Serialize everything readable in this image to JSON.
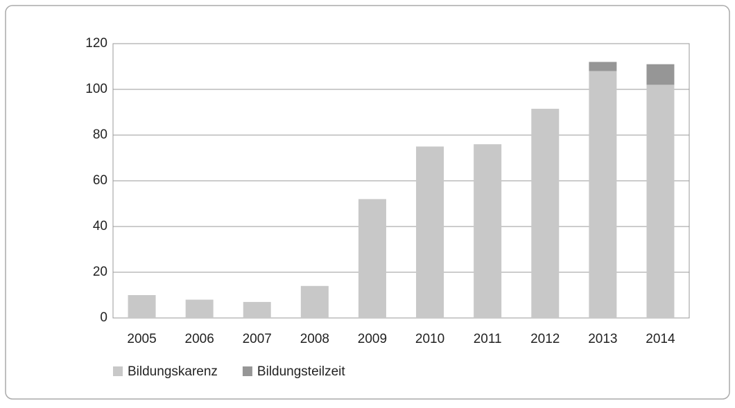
{
  "chart_data": {
    "type": "stacked_bar",
    "categories": [
      "2005",
      "2006",
      "2007",
      "2008",
      "2009",
      "2010",
      "2011",
      "2012",
      "2013",
      "2014"
    ],
    "series": [
      {
        "name": "Bildungskarenz",
        "color": "#c8c8c8",
        "values": [
          10,
          8,
          7,
          14,
          52,
          75,
          76,
          91.5,
          108,
          102
        ]
      },
      {
        "name": "Bildungsteilzeit",
        "color": "#969696",
        "values": [
          0,
          0,
          0,
          0,
          0,
          0,
          0,
          0,
          4,
          9
        ]
      }
    ],
    "ylim": [
      0,
      120
    ],
    "yticks": [
      0,
      20,
      40,
      60,
      80,
      100,
      120
    ],
    "grid": true,
    "legend": "bottom"
  }
}
